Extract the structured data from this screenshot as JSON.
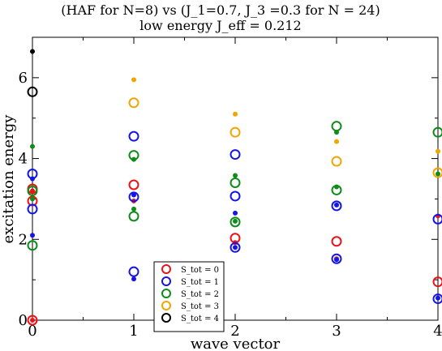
{
  "chart_data": {
    "type": "scatter",
    "title_line1": "(HAF for N=8) vs (J_1=0.7, J_3 =0.3 for N = 24)",
    "title_line2": "low energy J_eff = 0.212",
    "xlabel": "wave vector",
    "ylabel": "excitation energy",
    "xlim": [
      0,
      4
    ],
    "ylim": [
      0,
      7
    ],
    "xticks": [
      "0",
      "1",
      "2",
      "3",
      "4"
    ],
    "yticks": [
      "0",
      "2",
      "4",
      "6"
    ],
    "grid": false,
    "legend_position": "bottom-center",
    "series": [
      {
        "name": "S_tot = 0",
        "color": "#e8141a",
        "open": [
          [
            0,
            0.0
          ],
          [
            0,
            2.95
          ],
          [
            0,
            3.25
          ],
          [
            1,
            3.35
          ],
          [
            2,
            2.03
          ],
          [
            3,
            1.95
          ],
          [
            4,
            0.95
          ]
        ],
        "filled": [
          [
            0,
            0.0
          ],
          [
            0,
            3.2
          ],
          [
            1,
            2.95
          ],
          [
            2,
            1.92
          ],
          [
            3,
            1.52
          ],
          [
            4,
            2.58
          ]
        ]
      },
      {
        "name": "S_tot = 1",
        "color": "#1515e8",
        "open": [
          [
            0,
            2.75
          ],
          [
            0,
            3.62
          ],
          [
            1,
            1.2
          ],
          [
            1,
            3.05
          ],
          [
            1,
            4.55
          ],
          [
            2,
            1.8
          ],
          [
            2,
            3.07
          ],
          [
            2,
            4.1
          ],
          [
            3,
            1.52
          ],
          [
            3,
            2.83
          ],
          [
            4,
            0.53
          ],
          [
            4,
            2.5
          ]
        ],
        "filled": [
          [
            0,
            2.1
          ],
          [
            0,
            3.5
          ],
          [
            1,
            1.02
          ],
          [
            1,
            3.1
          ],
          [
            2,
            1.8
          ],
          [
            2,
            2.65
          ],
          [
            3,
            1.5
          ],
          [
            3,
            2.85
          ],
          [
            4,
            0.55
          ]
        ]
      },
      {
        "name": "S_tot = 2",
        "color": "#0f8c1a",
        "open": [
          [
            0,
            1.85
          ],
          [
            0,
            3.2
          ],
          [
            1,
            2.57
          ],
          [
            1,
            4.08
          ],
          [
            2,
            2.43
          ],
          [
            2,
            3.4
          ],
          [
            3,
            3.22
          ],
          [
            3,
            4.8
          ],
          [
            4,
            4.65
          ]
        ],
        "filled": [
          [
            0,
            3.0
          ],
          [
            0,
            4.3
          ],
          [
            1,
            2.75
          ],
          [
            1,
            3.98
          ],
          [
            2,
            2.45
          ],
          [
            2,
            3.58
          ],
          [
            3,
            3.3
          ],
          [
            3,
            4.65
          ],
          [
            4,
            3.62
          ]
        ]
      },
      {
        "name": "S_tot = 3",
        "color": "#f2a500",
        "open": [
          [
            1,
            5.38
          ],
          [
            2,
            4.65
          ],
          [
            3,
            3.93
          ],
          [
            4,
            3.65
          ]
        ],
        "filled": [
          [
            1,
            5.95
          ],
          [
            2,
            5.1
          ],
          [
            3,
            4.42
          ],
          [
            4,
            4.18
          ]
        ]
      },
      {
        "name": "S_tot = 4",
        "color": "#000000",
        "open": [
          [
            0,
            5.65
          ]
        ],
        "filled": [
          [
            0,
            6.65
          ]
        ]
      }
    ]
  }
}
